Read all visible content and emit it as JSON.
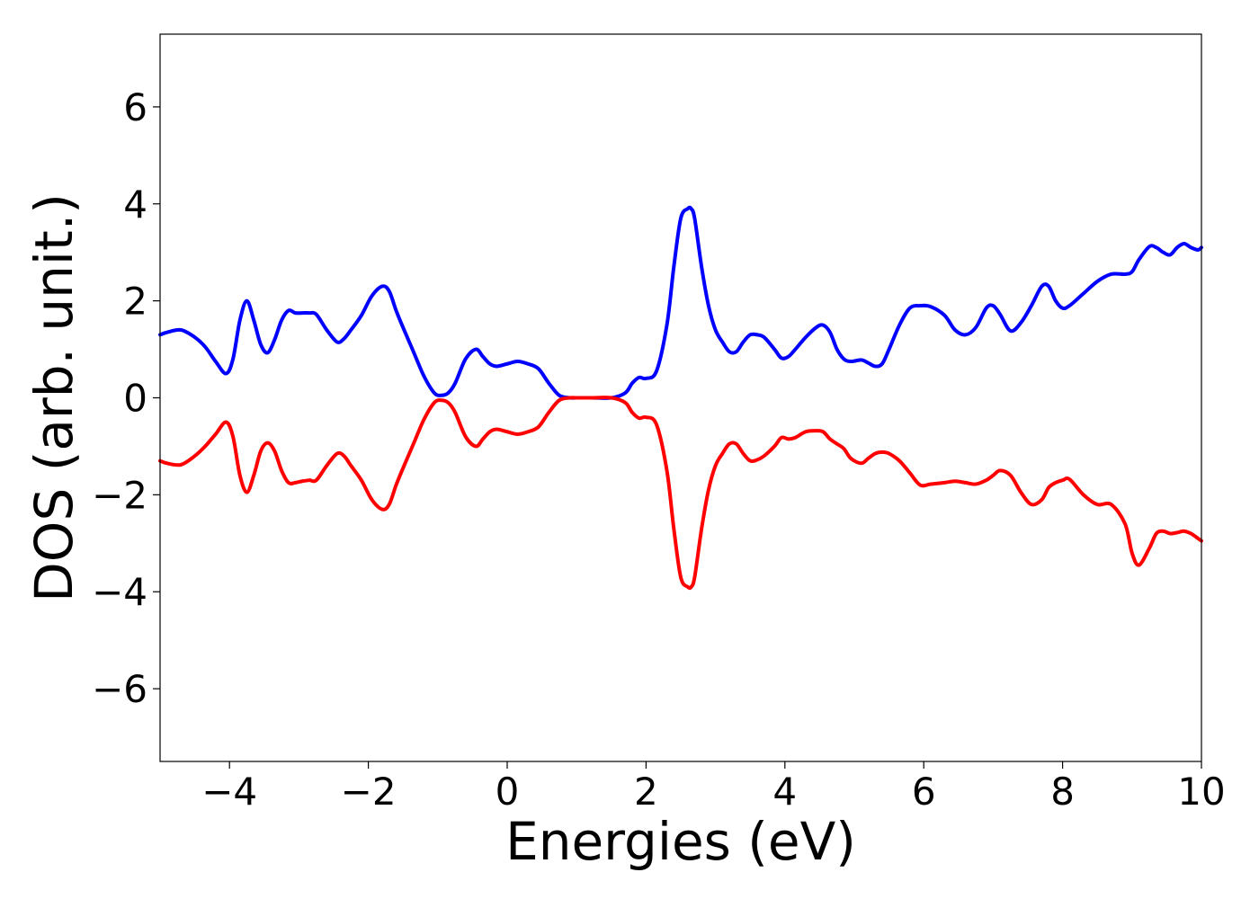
{
  "chart_data": {
    "type": "line",
    "xlabel": "Energies (eV)",
    "ylabel": "DOS (arb. unit.)",
    "xlim": [
      -5,
      10
    ],
    "ylim": [
      -7.5,
      7.5
    ],
    "grid": false,
    "xticks": [
      -4,
      -2,
      0,
      2,
      4,
      6,
      8,
      10
    ],
    "xtick_labels": [
      "−4",
      "−2",
      "0",
      "2",
      "4",
      "6",
      "8",
      "10"
    ],
    "yticks": [
      -6,
      -4,
      -2,
      0,
      2,
      4,
      6
    ],
    "ytick_labels": [
      "−6",
      "−4",
      "−2",
      "0",
      "2",
      "4",
      "6"
    ],
    "series": [
      {
        "color": "#0000ff",
        "x": [
          -5.0,
          -4.9,
          -4.7,
          -4.5,
          -4.35,
          -4.2,
          -4.05,
          -3.95,
          -3.85,
          -3.75,
          -3.65,
          -3.55,
          -3.45,
          -3.35,
          -3.25,
          -3.15,
          -3.05,
          -2.95,
          -2.85,
          -2.75,
          -2.6,
          -2.45,
          -2.35,
          -2.25,
          -2.1,
          -1.95,
          -1.8,
          -1.7,
          -1.6,
          -1.5,
          -1.35,
          -1.2,
          -1.05,
          -0.95,
          -0.85,
          -0.75,
          -0.6,
          -0.45,
          -0.35,
          -0.25,
          -0.15,
          0.0,
          0.15,
          0.3,
          0.45,
          0.6,
          0.75,
          0.9,
          1.0,
          1.2,
          1.5,
          1.7,
          1.8,
          1.9,
          2.0,
          2.15,
          2.3,
          2.4,
          2.5,
          2.6,
          2.65,
          2.7,
          2.8,
          2.9,
          3.0,
          3.1,
          3.2,
          3.3,
          3.4,
          3.5,
          3.6,
          3.7,
          3.85,
          3.95,
          4.05,
          4.15,
          4.3,
          4.45,
          4.55,
          4.65,
          4.75,
          4.85,
          4.95,
          5.1,
          5.2,
          5.3,
          5.4,
          5.5,
          5.65,
          5.8,
          5.95,
          6.1,
          6.3,
          6.45,
          6.6,
          6.75,
          6.9,
          7.0,
          7.1,
          7.25,
          7.4,
          7.55,
          7.7,
          7.8,
          7.9,
          8.0,
          8.1,
          8.3,
          8.5,
          8.7,
          8.9,
          9.0,
          9.1,
          9.25,
          9.35,
          9.45,
          9.55,
          9.65,
          9.75,
          9.85,
          9.95,
          10.0
        ],
        "y": [
          1.3,
          1.35,
          1.4,
          1.25,
          1.05,
          0.75,
          0.5,
          0.8,
          1.6,
          2.0,
          1.6,
          1.1,
          0.93,
          1.2,
          1.6,
          1.8,
          1.75,
          1.75,
          1.75,
          1.72,
          1.4,
          1.15,
          1.22,
          1.4,
          1.7,
          2.1,
          2.3,
          2.2,
          1.8,
          1.45,
          0.95,
          0.45,
          0.1,
          0.05,
          0.1,
          0.3,
          0.8,
          1.0,
          0.85,
          0.7,
          0.65,
          0.7,
          0.75,
          0.7,
          0.6,
          0.3,
          0.05,
          0.0,
          0.0,
          0.0,
          0.0,
          0.1,
          0.3,
          0.42,
          0.4,
          0.55,
          1.5,
          2.7,
          3.7,
          3.9,
          3.9,
          3.7,
          2.7,
          1.9,
          1.4,
          1.15,
          0.95,
          0.95,
          1.15,
          1.3,
          1.3,
          1.25,
          1.0,
          0.82,
          0.85,
          1.0,
          1.25,
          1.45,
          1.5,
          1.35,
          1.0,
          0.8,
          0.75,
          0.78,
          0.72,
          0.65,
          0.7,
          1.0,
          1.5,
          1.85,
          1.9,
          1.88,
          1.7,
          1.4,
          1.3,
          1.45,
          1.85,
          1.9,
          1.72,
          1.38,
          1.55,
          1.9,
          2.3,
          2.3,
          2.0,
          1.85,
          1.9,
          2.15,
          2.4,
          2.55,
          2.55,
          2.6,
          2.85,
          3.12,
          3.1,
          3.0,
          2.95,
          3.1,
          3.18,
          3.1,
          3.05,
          3.1
        ]
      },
      {
        "color": "#ff0000",
        "x": [
          -5.0,
          -4.9,
          -4.7,
          -4.5,
          -4.35,
          -4.2,
          -4.05,
          -3.95,
          -3.85,
          -3.75,
          -3.65,
          -3.55,
          -3.45,
          -3.35,
          -3.25,
          -3.15,
          -3.05,
          -2.95,
          -2.85,
          -2.75,
          -2.6,
          -2.45,
          -2.35,
          -2.25,
          -2.1,
          -1.95,
          -1.8,
          -1.7,
          -1.6,
          -1.5,
          -1.35,
          -1.2,
          -1.05,
          -0.95,
          -0.85,
          -0.75,
          -0.6,
          -0.45,
          -0.35,
          -0.25,
          -0.15,
          0.0,
          0.15,
          0.3,
          0.45,
          0.6,
          0.75,
          0.9,
          1.0,
          1.2,
          1.5,
          1.7,
          1.8,
          1.9,
          2.0,
          2.15,
          2.3,
          2.4,
          2.5,
          2.6,
          2.65,
          2.7,
          2.8,
          2.9,
          3.0,
          3.1,
          3.2,
          3.3,
          3.4,
          3.5,
          3.6,
          3.7,
          3.85,
          3.95,
          4.05,
          4.15,
          4.3,
          4.45,
          4.55,
          4.65,
          4.75,
          4.85,
          4.95,
          5.1,
          5.2,
          5.3,
          5.4,
          5.5,
          5.65,
          5.8,
          5.95,
          6.1,
          6.3,
          6.45,
          6.6,
          6.75,
          6.9,
          7.0,
          7.1,
          7.25,
          7.4,
          7.55,
          7.7,
          7.8,
          7.9,
          8.0,
          8.1,
          8.3,
          8.5,
          8.7,
          8.9,
          9.0,
          9.1,
          9.25,
          9.35,
          9.45,
          9.55,
          9.65,
          9.75,
          9.85,
          9.95,
          10.0
        ],
        "y": [
          -1.3,
          -1.35,
          -1.38,
          -1.2,
          -1.0,
          -0.75,
          -0.5,
          -0.8,
          -1.6,
          -1.95,
          -1.6,
          -1.1,
          -0.93,
          -1.1,
          -1.5,
          -1.75,
          -1.75,
          -1.72,
          -1.7,
          -1.7,
          -1.4,
          -1.15,
          -1.2,
          -1.4,
          -1.7,
          -2.1,
          -2.3,
          -2.2,
          -1.8,
          -1.45,
          -0.95,
          -0.45,
          -0.1,
          -0.05,
          -0.1,
          -0.3,
          -0.8,
          -1.0,
          -0.85,
          -0.7,
          -0.65,
          -0.7,
          -0.75,
          -0.7,
          -0.6,
          -0.3,
          -0.05,
          0.0,
          0.0,
          0.0,
          0.0,
          -0.1,
          -0.3,
          -0.42,
          -0.4,
          -0.55,
          -1.5,
          -2.7,
          -3.7,
          -3.9,
          -3.9,
          -3.7,
          -2.7,
          -1.9,
          -1.4,
          -1.15,
          -0.95,
          -0.95,
          -1.15,
          -1.3,
          -1.28,
          -1.2,
          -1.0,
          -0.82,
          -0.85,
          -0.82,
          -0.7,
          -0.68,
          -0.7,
          -0.85,
          -0.95,
          -1.05,
          -1.25,
          -1.35,
          -1.25,
          -1.15,
          -1.12,
          -1.15,
          -1.3,
          -1.55,
          -1.8,
          -1.78,
          -1.75,
          -1.72,
          -1.75,
          -1.78,
          -1.7,
          -1.6,
          -1.5,
          -1.6,
          -1.95,
          -2.2,
          -2.1,
          -1.85,
          -1.75,
          -1.7,
          -1.68,
          -2.0,
          -2.2,
          -2.2,
          -2.6,
          -3.2,
          -3.45,
          -3.1,
          -2.8,
          -2.75,
          -2.8,
          -2.78,
          -2.75,
          -2.8,
          -2.9,
          -2.95
        ]
      }
    ]
  }
}
